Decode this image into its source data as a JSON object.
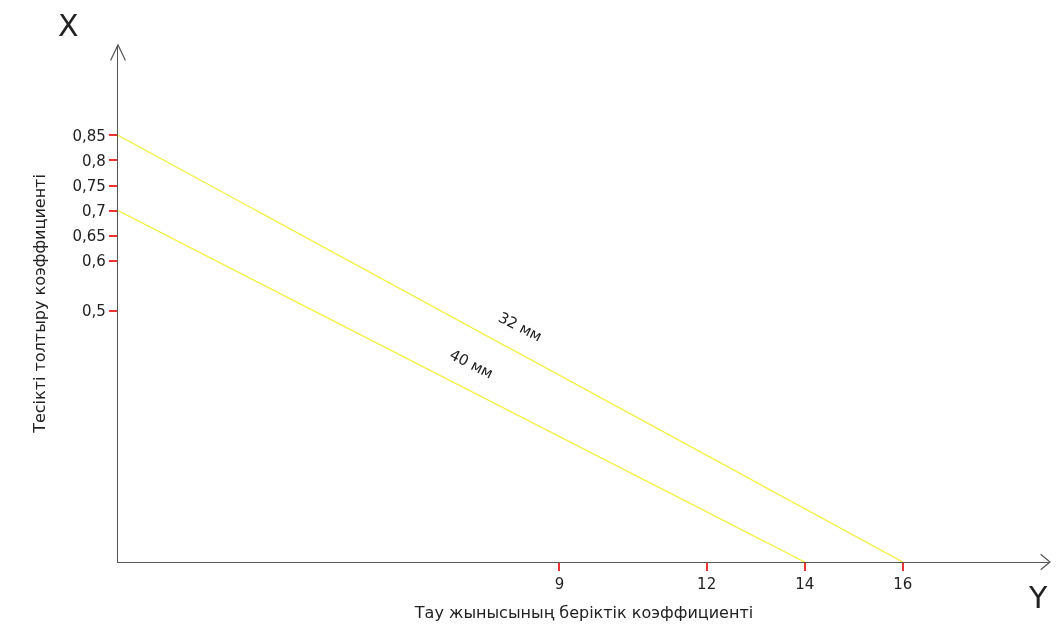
{
  "chart_data": {
    "type": "line",
    "xlabel": "Тау жынысының беріктік коэффициенті",
    "ylabel": "Тесікті толтыру коэффициенті",
    "annotations": [
      "X",
      "Y"
    ],
    "series": [
      {
        "name": "32 мм",
        "color": "#f5f03c",
        "x": [
          0,
          16
        ],
        "values": [
          0.85,
          0
        ]
      },
      {
        "name": "40 мм",
        "color": "#f5f03c",
        "x": [
          0,
          14
        ],
        "values": [
          0.7,
          0
        ]
      }
    ],
    "xlim": [
      0,
      19
    ],
    "ylim": [
      0,
      1.03
    ],
    "xticks": [
      9,
      12,
      14,
      16
    ],
    "yticks": [
      {
        "value": 0.5,
        "label": "0,5"
      },
      {
        "value": 0.6,
        "label": "0,6"
      },
      {
        "value": 0.65,
        "label": "0,65"
      },
      {
        "value": 0.7,
        "label": "0,7"
      },
      {
        "value": 0.75,
        "label": "0,75"
      },
      {
        "value": 0.8,
        "label": "0,8"
      },
      {
        "value": 0.85,
        "label": "0,85"
      }
    ],
    "grid": false,
    "legend": false,
    "marker": "none",
    "line_style": "solid"
  }
}
